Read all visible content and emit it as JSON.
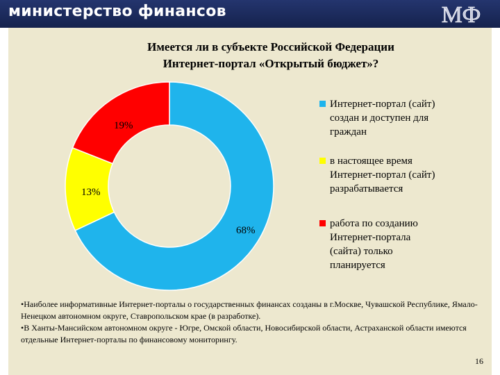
{
  "header": {
    "ministry": "министерство финансов",
    "logo_text": "МФ"
  },
  "slide": {
    "title_line1": "Имеется ли в субъекте Российской Федерации",
    "title_line2": "Интернет-портал «Открытый бюджет»?",
    "notes": [
      "•Наиболее информативные Интернет-порталы о государственных финансах созданы в г.Москве, Чувашской Республике, Ямало-Ненецком автономном округе, Ставропольском крае (в разработке).",
      "•В Ханты-Мансийском автономном округе - Югре, Омской области, Новосибирской области, Астраханской области имеются отдельные Интернет-порталы по финансовому мониторингу."
    ],
    "page_number": "16"
  },
  "chart_data": {
    "type": "pie",
    "variant": "doughnut",
    "title": "Имеется ли в субъекте Российской Федерации Интернет-портал «Открытый бюджет»?",
    "categories": [
      "Интернет-портал (сайт) создан и доступен для граждан",
      "в настоящее время Интернет-портал (сайт) разрабатывается",
      "работа по созданию Интернет-портала (сайта) только планируется"
    ],
    "legend_lines": [
      [
        "Интернет-портал (сайт)",
        "создан и доступен для",
        "граждан"
      ],
      [
        "в настоящее время",
        "Интернет-портал (сайт)",
        "разрабатывается"
      ],
      [
        "работа по созданию",
        "Интернет-портала",
        "(сайта) только",
        "планируется"
      ]
    ],
    "values": [
      68,
      13,
      19
    ],
    "labels": [
      "68%",
      "13%",
      "19%"
    ],
    "colors": [
      "#1fb4ec",
      "#ffff00",
      "#ff0000"
    ],
    "legend_position": "right"
  }
}
